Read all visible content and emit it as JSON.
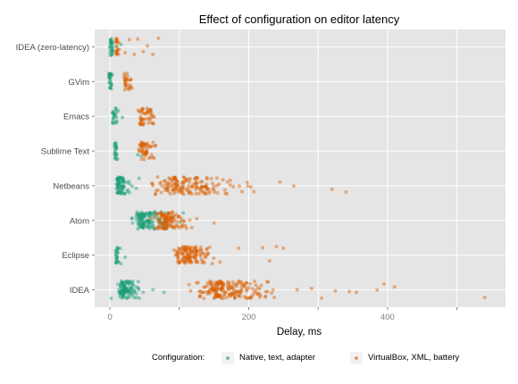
{
  "chart_data": {
    "type": "scatter",
    "title": "Effect of configuration on editor latency",
    "xlabel": "Delay, ms",
    "ylabel": "",
    "xlim": [
      -22,
      570
    ],
    "xticks": [
      0,
      100,
      200,
      300,
      400,
      500
    ],
    "xtick_labels": [
      "0",
      "200",
      "400"
    ],
    "xtick_label_values": [
      0,
      200,
      400
    ],
    "categories": [
      "IDEA (zero-latency)",
      "GVim",
      "Emacs",
      "Sublime Text",
      "Netbeans",
      "Atom",
      "Eclipse",
      "IDEA"
    ],
    "grid": true,
    "legend_position": "bottom",
    "legend": {
      "title": "Configuration:",
      "entries": [
        "Native, text, adapter",
        "VirtualBox, XML, battery"
      ]
    },
    "series": [
      {
        "name": "Native, text, adapter",
        "color": "#1b9e77",
        "clusters": [
          {
            "category": "IDEA (zero-latency)",
            "min": 0,
            "center": 2,
            "spread": 2,
            "n": 28,
            "outliers": [
              10,
              16
            ]
          },
          {
            "category": "GVim",
            "min": -2,
            "center": 0,
            "spread": 1.5,
            "n": 25,
            "outliers": []
          },
          {
            "category": "Emacs",
            "min": 3,
            "center": 6,
            "spread": 2,
            "n": 22,
            "outliers": [
              18
            ]
          },
          {
            "category": "Sublime Text",
            "min": 6,
            "center": 8,
            "spread": 1.5,
            "n": 22,
            "outliers": [
              40,
              45
            ]
          },
          {
            "category": "Netbeans",
            "min": 8,
            "center": 14,
            "spread": 5,
            "n": 70,
            "outliers": [
              32,
              38,
              42
            ]
          },
          {
            "category": "Atom",
            "min": 30,
            "center": 50,
            "spread": 12,
            "n": 120,
            "outliers": [
              70,
              78,
              82
            ]
          },
          {
            "category": "Eclipse",
            "min": 8,
            "center": 10,
            "spread": 2,
            "n": 22,
            "outliers": [
              22
            ]
          },
          {
            "category": "IDEA",
            "min": 10,
            "center": 22,
            "spread": 8,
            "n": 100,
            "outliers": [
              48,
              62,
              78,
              2
            ]
          }
        ]
      },
      {
        "name": "VirtualBox, XML, battery",
        "color": "#d95f02",
        "clusters": [
          {
            "category": "IDEA (zero-latency)",
            "min": 8,
            "center": 10,
            "spread": 1.5,
            "n": 20,
            "outliers": [
              22,
              28,
              35,
              40,
              48,
              54,
              62,
              70
            ]
          },
          {
            "category": "GVim",
            "min": 15,
            "center": 23,
            "spread": 2.5,
            "n": 25,
            "outliers": [
              30,
              32
            ]
          },
          {
            "category": "Emacs",
            "min": 35,
            "center": 48,
            "spread": 6,
            "n": 45,
            "outliers": [
              60,
              62
            ]
          },
          {
            "category": "Sublime Text",
            "min": 35,
            "center": 50,
            "spread": 7,
            "n": 50,
            "outliers": [
              62,
              65
            ]
          },
          {
            "category": "Netbeans",
            "min": 60,
            "center": 110,
            "spread": 30,
            "n": 160,
            "outliers": [
              245,
              265,
              320,
              340
            ]
          },
          {
            "category": "Atom",
            "min": 55,
            "center": 85,
            "spread": 12,
            "n": 110,
            "outliers": [
              105,
              118,
              125,
              150
            ]
          },
          {
            "category": "Eclipse",
            "min": 90,
            "center": 115,
            "spread": 15,
            "n": 130,
            "outliers": [
              220,
              230,
              240,
              250
            ]
          },
          {
            "category": "IDEA",
            "min": 110,
            "center": 165,
            "spread": 30,
            "n": 190,
            "outliers": [
              305,
              325,
              345,
              355,
              385,
              395,
              410,
              540
            ]
          }
        ]
      }
    ]
  }
}
